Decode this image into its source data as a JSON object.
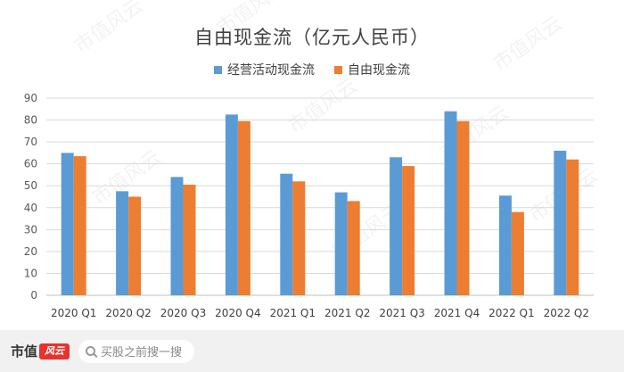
{
  "chart_data": {
    "type": "bar",
    "title": "自由现金流（亿元人民币）",
    "categories": [
      "2020 Q1",
      "2020 Q2",
      "2020 Q3",
      "2020 Q4",
      "2021 Q1",
      "2021 Q2",
      "2021 Q3",
      "2021 Q4",
      "2022 Q1",
      "2022 Q2"
    ],
    "series": [
      {
        "name": "经营活动现金流",
        "color": "#5b9bd5",
        "values": [
          65,
          47.5,
          54,
          82.5,
          55.5,
          47,
          63,
          84,
          45.5,
          66
        ]
      },
      {
        "name": "自由现金流",
        "color": "#ed7d31",
        "values": [
          63.5,
          45,
          50.5,
          79.5,
          52,
          43,
          59,
          79.5,
          38,
          62
        ]
      }
    ],
    "ylim": [
      0,
      90
    ],
    "yticks": [
      0,
      10,
      20,
      30,
      40,
      50,
      60,
      70,
      80,
      90
    ],
    "grid": true,
    "legend_position": "top-center",
    "xlabel": "",
    "ylabel": ""
  },
  "watermark": "市值风云",
  "footer": {
    "brand_text": "市值",
    "brand_mark": "风云",
    "search_placeholder": "买股之前搜一搜"
  }
}
